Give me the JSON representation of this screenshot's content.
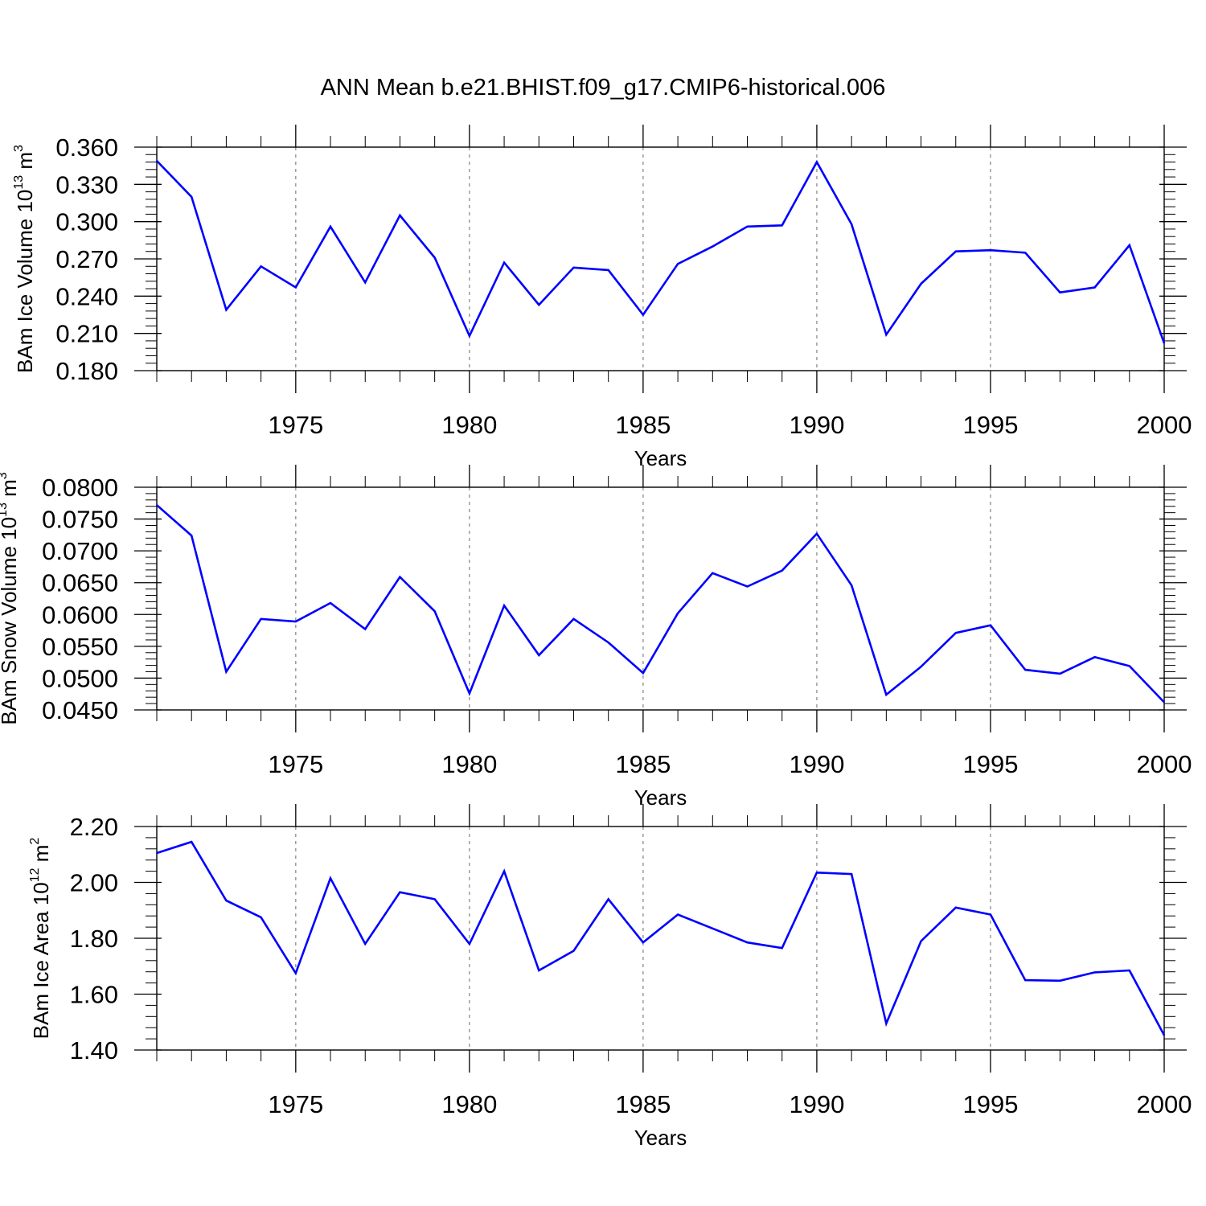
{
  "title": "ANN Mean b.e21.BHIST.f09_g17.CMIP6-historical.006",
  "colors": {
    "series": "#0000ff",
    "axis": "#000000",
    "grid": "#8c8c8c"
  },
  "chart_data": [
    {
      "type": "line",
      "ylabel": {
        "text": "BAm Ice Volume 10",
        "exp": "13",
        "unit": " m",
        "unit_exp": "3"
      },
      "xlabel": "Years",
      "xlim": [
        1971,
        2000
      ],
      "ylim": [
        0.18,
        0.36
      ],
      "yticks": [
        0.18,
        0.21,
        0.24,
        0.27,
        0.3,
        0.33,
        0.36
      ],
      "ytick_labels": [
        "0.180",
        "0.210",
        "0.240",
        "0.270",
        "0.300",
        "0.330",
        "0.360"
      ],
      "xticks": [
        1975,
        1980,
        1985,
        1990,
        1995,
        2000
      ],
      "xtick_labels": [
        "1975",
        "1980",
        "1985",
        "1990",
        "1995",
        "2000"
      ],
      "grid": "vertical dashed at major x ticks",
      "x": [
        1971,
        1972,
        1973,
        1974,
        1975,
        1976,
        1977,
        1978,
        1979,
        1980,
        1981,
        1982,
        1983,
        1984,
        1985,
        1986,
        1987,
        1988,
        1989,
        1990,
        1991,
        1992,
        1993,
        1994,
        1995,
        1996,
        1997,
        1998,
        1999,
        2000
      ],
      "series": [
        {
          "name": "BAm Ice Volume",
          "values": [
            0.349,
            0.32,
            0.229,
            0.264,
            0.247,
            0.296,
            0.251,
            0.305,
            0.271,
            0.208,
            0.267,
            0.233,
            0.263,
            0.261,
            0.225,
            0.266,
            0.28,
            0.296,
            0.297,
            0.348,
            0.298,
            0.209,
            0.25,
            0.276,
            0.277,
            0.275,
            0.243,
            0.247,
            0.281,
            0.202
          ]
        }
      ]
    },
    {
      "type": "line",
      "ylabel": {
        "text": "BAm Snow Volume 10",
        "exp": "13",
        "unit": " m",
        "unit_exp": "3"
      },
      "xlabel": "Years",
      "xlim": [
        1971,
        2000
      ],
      "ylim": [
        0.045,
        0.08
      ],
      "yticks": [
        0.045,
        0.05,
        0.055,
        0.06,
        0.065,
        0.07,
        0.075,
        0.08
      ],
      "ytick_labels": [
        "0.0450",
        "0.0500",
        "0.0550",
        "0.0600",
        "0.0650",
        "0.0700",
        "0.0750",
        "0.0800"
      ],
      "xticks": [
        1975,
        1980,
        1985,
        1990,
        1995,
        2000
      ],
      "xtick_labels": [
        "1975",
        "1980",
        "1985",
        "1990",
        "1995",
        "2000"
      ],
      "grid": "vertical dashed at major x ticks",
      "x": [
        1971,
        1972,
        1973,
        1974,
        1975,
        1976,
        1977,
        1978,
        1979,
        1980,
        1981,
        1982,
        1983,
        1984,
        1985,
        1986,
        1987,
        1988,
        1989,
        1990,
        1991,
        1992,
        1993,
        1994,
        1995,
        1996,
        1997,
        1998,
        1999,
        2000
      ],
      "series": [
        {
          "name": "BAm Snow Volume",
          "values": [
            0.0772,
            0.0724,
            0.051,
            0.0593,
            0.0589,
            0.0618,
            0.0577,
            0.0659,
            0.0605,
            0.0476,
            0.0614,
            0.0536,
            0.0593,
            0.0556,
            0.0508,
            0.0602,
            0.0665,
            0.0644,
            0.0669,
            0.0727,
            0.0646,
            0.0474,
            0.0518,
            0.0571,
            0.0583,
            0.0513,
            0.0507,
            0.0533,
            0.0519,
            0.0462
          ]
        }
      ]
    },
    {
      "type": "line",
      "ylabel": {
        "text": "BAm Ice Area 10",
        "exp": "12",
        "unit": " m",
        "unit_exp": "2"
      },
      "xlabel": "Years",
      "xlim": [
        1971,
        2000
      ],
      "ylim": [
        1.4,
        2.2
      ],
      "yticks": [
        1.4,
        1.6,
        1.8,
        2.0,
        2.2
      ],
      "ytick_labels": [
        "1.40",
        "1.60",
        "1.80",
        "2.00",
        "2.20"
      ],
      "xticks": [
        1975,
        1980,
        1985,
        1990,
        1995,
        2000
      ],
      "xtick_labels": [
        "1975",
        "1980",
        "1985",
        "1990",
        "1995",
        "2000"
      ],
      "grid": "vertical dashed at major x ticks",
      "x": [
        1971,
        1972,
        1973,
        1974,
        1975,
        1976,
        1977,
        1978,
        1979,
        1980,
        1981,
        1982,
        1983,
        1984,
        1985,
        1986,
        1987,
        1988,
        1989,
        1990,
        1991,
        1992,
        1993,
        1994,
        1995,
        1996,
        1997,
        1998,
        1999,
        2000
      ],
      "series": [
        {
          "name": "BAm Ice Area",
          "values": [
            2.105,
            2.145,
            1.935,
            1.875,
            1.675,
            2.015,
            1.78,
            1.965,
            1.94,
            1.78,
            2.04,
            1.685,
            1.755,
            1.94,
            1.785,
            1.885,
            1.835,
            1.785,
            1.765,
            2.035,
            2.03,
            1.495,
            1.79,
            1.91,
            1.885,
            1.65,
            1.648,
            1.678,
            1.685,
            1.453
          ]
        }
      ]
    }
  ]
}
